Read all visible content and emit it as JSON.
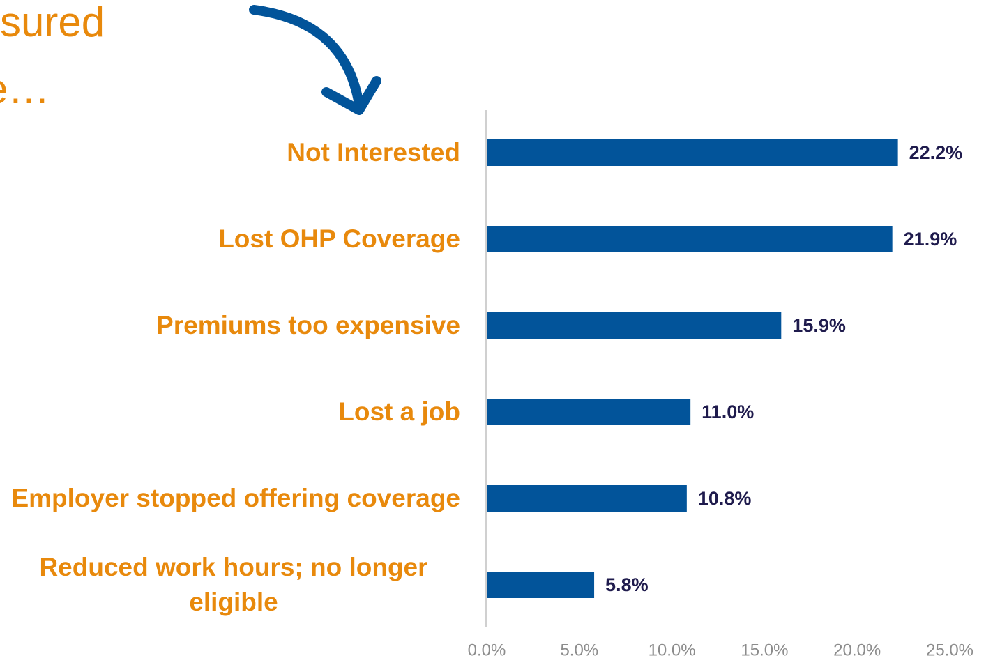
{
  "chart_data": {
    "type": "bar",
    "orientation": "horizontal",
    "annotations": [
      "sured",
      "e…"
    ],
    "categories": [
      "Not Interested",
      "Lost OHP Coverage",
      "Premiums too expensive",
      "Lost a job",
      "Employer stopped offering coverage",
      "Reduced work hours; no longer eligible"
    ],
    "values": [
      22.2,
      21.9,
      15.9,
      11.0,
      10.8,
      5.8
    ],
    "value_labels": [
      "22.2%",
      "21.9%",
      "15.9%",
      "11.0%",
      "10.8%",
      "5.8%"
    ],
    "color": "#02549a",
    "xlim": [
      0,
      25
    ],
    "xticks": [
      {
        "value": 0,
        "label": "0.0%"
      },
      {
        "value": 5,
        "label": "5.0%"
      },
      {
        "value": 10,
        "label": "10.0%"
      },
      {
        "value": 15,
        "label": "15.0%"
      },
      {
        "value": 20,
        "label": "20.0%"
      },
      {
        "value": 25,
        "label": "25.0%"
      }
    ],
    "grid": false
  }
}
